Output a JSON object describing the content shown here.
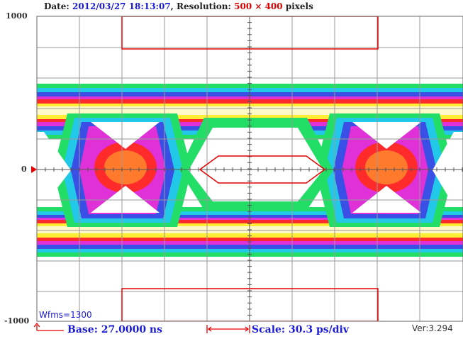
{
  "header": {
    "date_label": "Date: ",
    "date_value": "2012/03/27 18:13:07",
    "sep": ", Resolution: ",
    "resolution_value": "500 × 400",
    "unit": " pixels"
  },
  "axis": {
    "y_max": "1000",
    "y_zero": "0",
    "y_min": "-1000"
  },
  "status": {
    "waveforms": "Wfms=1300",
    "base": "Base: 27.0000 ns",
    "scale": "Scale: 30.3 ps/div",
    "version": "Ver:3.294"
  },
  "colors": {
    "grid": "#9a9a9a",
    "mask": "#e60000",
    "marker": "#e60000",
    "text_blue": "#1b1bd6"
  }
}
